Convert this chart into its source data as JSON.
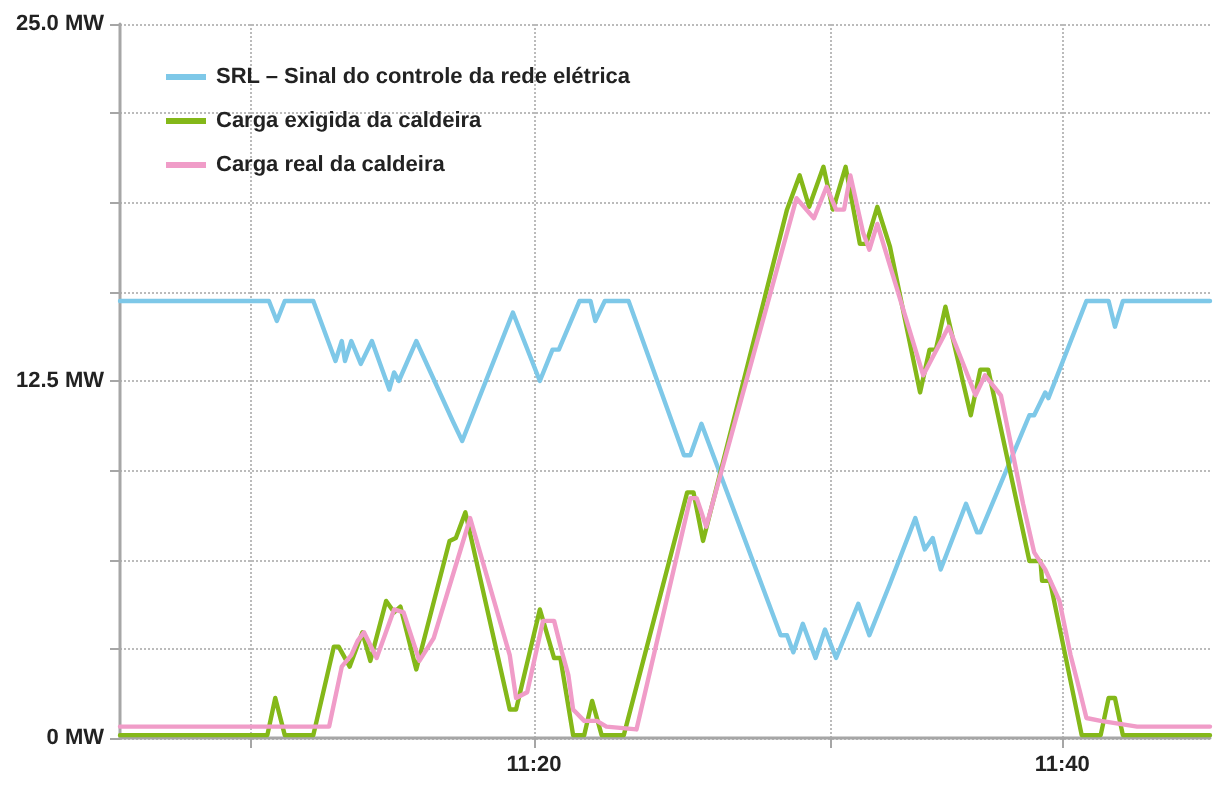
{
  "chart_data": {
    "type": "line",
    "legend": "top left",
    "grid": true,
    "marker": "none",
    "line_style": "solid",
    "xlim": [
      11.072,
      11.76
    ],
    "ylim": [
      0,
      25
    ],
    "xticks": [
      {
        "value": 11.155,
        "label": null
      },
      {
        "value": 11.3333,
        "label": "11:20"
      },
      {
        "value": 11.52,
        "label": null
      },
      {
        "value": 11.6667,
        "label": "11:40"
      }
    ],
    "yticks": [
      {
        "value": 0,
        "label": "0 MW"
      },
      {
        "value": 3.125,
        "label": null
      },
      {
        "value": 6.25,
        "label": null
      },
      {
        "value": 9.375,
        "label": null
      },
      {
        "value": 12.5,
        "label": "12.5 MW"
      },
      {
        "value": 15.625,
        "label": null
      },
      {
        "value": 18.75,
        "label": null
      },
      {
        "value": 21.875,
        "label": null
      },
      {
        "value": 25,
        "label": "25.0 MW"
      }
    ],
    "series": [
      {
        "name": "SRL – Sinal do controle da rede elétrica",
        "color": "#7ec8e8",
        "x": [
          11.072,
          11.166,
          11.171,
          11.176,
          11.194,
          11.208,
          11.212,
          11.214,
          11.218,
          11.224,
          11.231,
          11.242,
          11.245,
          11.248,
          11.259,
          11.282,
          11.288,
          11.32,
          11.337,
          11.345,
          11.349,
          11.362,
          11.369,
          11.372,
          11.378,
          11.393,
          11.428,
          11.432,
          11.439,
          11.489,
          11.493,
          11.497,
          11.503,
          11.511,
          11.517,
          11.524,
          11.538,
          11.545,
          11.558,
          11.574,
          11.58,
          11.585,
          11.59,
          11.606,
          11.613,
          11.615,
          11.646,
          11.649,
          11.656,
          11.658,
          11.682,
          11.696,
          11.7,
          11.705,
          11.76
        ],
        "values": [
          15.3,
          15.3,
          14.6,
          15.3,
          15.3,
          13.2,
          13.9,
          13.2,
          13.9,
          13.1,
          13.9,
          12.2,
          12.8,
          12.5,
          13.9,
          11.1,
          10.4,
          14.9,
          12.5,
          13.6,
          13.6,
          15.3,
          15.3,
          14.6,
          15.3,
          15.3,
          9.9,
          9.9,
          11.0,
          3.6,
          3.6,
          3.0,
          4.0,
          2.8,
          3.8,
          2.8,
          4.7,
          3.6,
          5.4,
          7.7,
          6.6,
          7.0,
          5.9,
          8.2,
          7.2,
          7.2,
          11.3,
          11.3,
          12.1,
          11.9,
          15.3,
          15.3,
          14.4,
          15.3,
          15.3
        ]
      },
      {
        "name": "Carga exigida da caldeira",
        "color": "#84b819",
        "x": [
          11.072,
          11.165,
          11.17,
          11.176,
          11.194,
          11.207,
          11.21,
          11.217,
          11.225,
          11.23,
          11.24,
          11.245,
          11.249,
          11.259,
          11.28,
          11.284,
          11.29,
          11.318,
          11.322,
          11.337,
          11.346,
          11.35,
          11.358,
          11.365,
          11.37,
          11.376,
          11.39,
          11.43,
          11.434,
          11.44,
          11.493,
          11.501,
          11.507,
          11.516,
          11.522,
          11.53,
          11.539,
          11.543,
          11.55,
          11.558,
          11.577,
          11.583,
          11.587,
          11.593,
          11.609,
          11.615,
          11.62,
          11.646,
          11.653,
          11.654,
          11.659,
          11.679,
          11.691,
          11.696,
          11.7,
          11.705,
          11.76
        ],
        "values": [
          0.1,
          0.1,
          1.4,
          0.1,
          0.1,
          3.2,
          3.2,
          2.5,
          3.7,
          2.7,
          4.8,
          4.4,
          4.6,
          2.4,
          6.9,
          7.0,
          7.9,
          1.0,
          1.0,
          4.5,
          2.8,
          2.8,
          0.1,
          0.1,
          1.3,
          0.1,
          0.1,
          8.6,
          8.6,
          6.9,
          18.5,
          19.7,
          18.6,
          20.0,
          18.5,
          20.0,
          17.3,
          17.3,
          18.6,
          17.2,
          12.1,
          13.6,
          13.6,
          15.1,
          11.3,
          12.9,
          12.9,
          6.2,
          6.2,
          5.5,
          5.5,
          0.1,
          0.1,
          1.4,
          1.4,
          0.1,
          0.1
        ]
      },
      {
        "name": "Carga real da caldeira",
        "color": "#f09cc8",
        "x": [
          11.072,
          11.204,
          11.212,
          11.218,
          11.222,
          11.226,
          11.234,
          11.245,
          11.251,
          11.261,
          11.27,
          11.287,
          11.293,
          11.318,
          11.322,
          11.329,
          11.339,
          11.346,
          11.351,
          11.355,
          11.358,
          11.365,
          11.373,
          11.379,
          11.398,
          11.432,
          11.436,
          11.442,
          11.499,
          11.51,
          11.518,
          11.524,
          11.529,
          11.533,
          11.541,
          11.545,
          11.55,
          11.579,
          11.595,
          11.612,
          11.618,
          11.628,
          11.642,
          11.649,
          11.656,
          11.665,
          11.672,
          11.678,
          11.682,
          11.691,
          11.714,
          11.76
        ],
        "values": [
          0.4,
          0.4,
          2.5,
          2.9,
          3.4,
          3.7,
          2.8,
          4.5,
          4.4,
          2.7,
          3.5,
          6.6,
          7.7,
          2.9,
          1.4,
          1.6,
          4.1,
          4.1,
          3.0,
          2.2,
          1.0,
          0.6,
          0.6,
          0.4,
          0.3,
          8.4,
          8.4,
          7.4,
          18.9,
          18.2,
          19.3,
          18.5,
          18.5,
          19.7,
          17.7,
          17.1,
          18.0,
          12.7,
          14.4,
          12.0,
          12.7,
          12.0,
          8.2,
          6.5,
          5.9,
          4.8,
          2.9,
          1.6,
          0.7,
          0.6,
          0.4,
          0.4
        ]
      }
    ]
  }
}
